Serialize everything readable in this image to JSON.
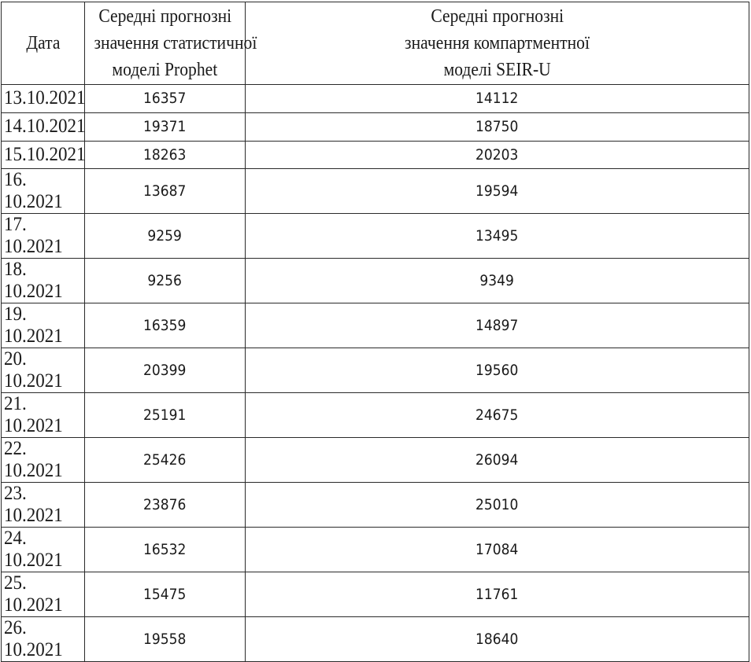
{
  "table": {
    "headers": [
      "Дата",
      [
        "Середні прогнозні",
        "значення статистичної",
        "моделі Prophet"
      ],
      [
        "Середні прогнозні",
        "значення компартментної",
        "моделі SEIR-U"
      ]
    ],
    "rows": [
      [
        "13.10.2021",
        "16357",
        "14112"
      ],
      [
        "14.10.2021",
        "19371",
        "18750"
      ],
      [
        "15.10.2021",
        "18263",
        "20203"
      ],
      [
        "16. 10.2021",
        "13687",
        "19594"
      ],
      [
        "17. 10.2021",
        "9259",
        "13495"
      ],
      [
        "18. 10.2021",
        "9256",
        "9349"
      ],
      [
        "19. 10.2021",
        "16359",
        "14897"
      ],
      [
        "20. 10.2021",
        "20399",
        "19560"
      ],
      [
        "21. 10.2021",
        "25191",
        "24675"
      ],
      [
        "22. 10.2021",
        "25426",
        "26094"
      ],
      [
        "23. 10.2021",
        "23876",
        "25010"
      ],
      [
        "24. 10.2021",
        "16532",
        "17084"
      ],
      [
        "25. 10.2021",
        "15475",
        "11761"
      ],
      [
        "26. 10.2021",
        "19558",
        "18640"
      ]
    ]
  }
}
